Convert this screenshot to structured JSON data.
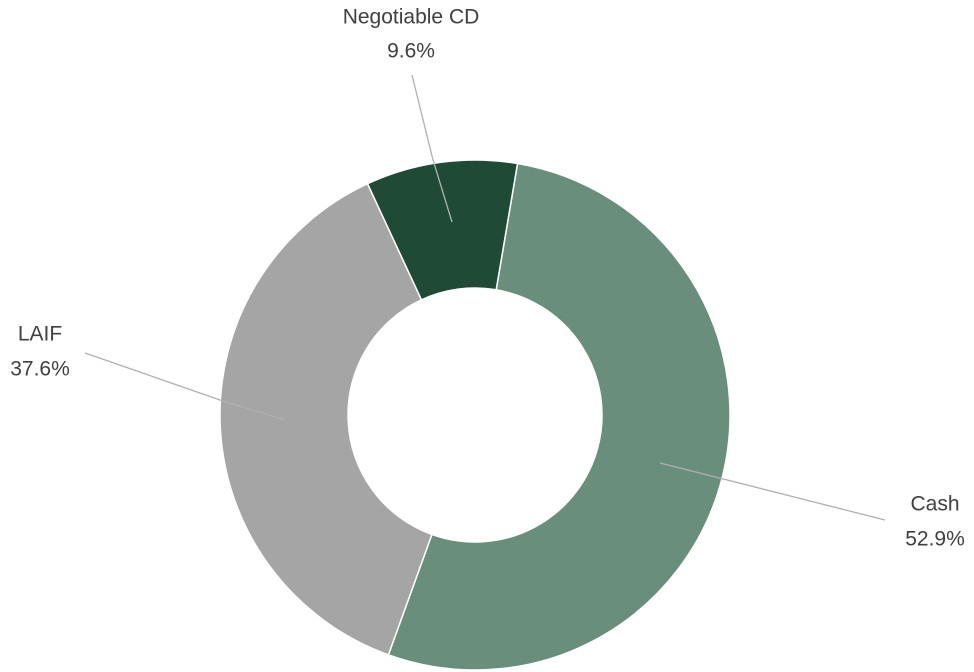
{
  "chart_data": {
    "type": "donut",
    "categories": [
      "Cash",
      "LAIF",
      "Negotiable CD"
    ],
    "values": [
      52.9,
      37.6,
      9.6
    ],
    "value_labels": [
      "52.9%",
      "37.6%",
      "9.6%"
    ],
    "colors": [
      "#698e7c",
      "#a5a5a5",
      "#1f4a36"
    ]
  }
}
